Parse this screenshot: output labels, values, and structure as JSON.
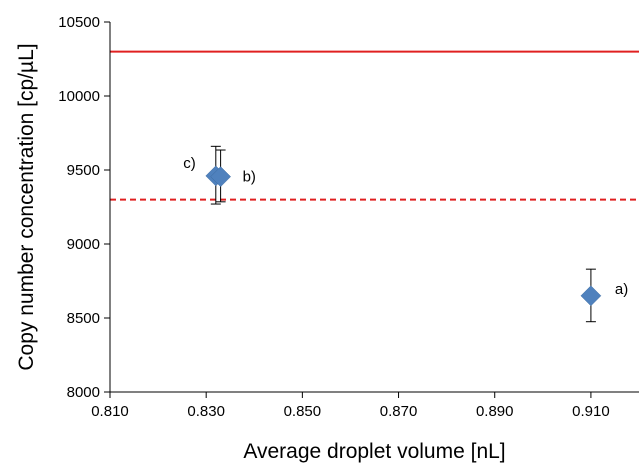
{
  "chart_data": {
    "type": "scatter",
    "title": "",
    "xlabel": "Average droplet volume [nL]",
    "ylabel": "Copy number concentration [cp/µL]",
    "xlim": [
      0.81,
      0.92
    ],
    "ylim": [
      8000,
      10500
    ],
    "x_ticks": [
      0.81,
      0.83,
      0.85,
      0.87,
      0.89,
      0.91
    ],
    "x_tick_labels": [
      "0.810",
      "0.830",
      "0.850",
      "0.870",
      "0.890",
      "0.910"
    ],
    "y_ticks": [
      8000,
      8500,
      9000,
      9500,
      10000,
      10500
    ],
    "y_tick_labels": [
      "8000",
      "8500",
      "9000",
      "9500",
      "10000",
      "10500"
    ],
    "grid": false,
    "marker_color": "#4f81bd",
    "points": [
      {
        "label": "c)",
        "x": 0.832,
        "y": 9460,
        "err_low": 190,
        "err_high": 200
      },
      {
        "label": "b)",
        "x": 0.833,
        "y": 9455,
        "err_low": 170,
        "err_high": 180
      },
      {
        "label": "a)",
        "x": 0.91,
        "y": 8650,
        "err_low": 175,
        "err_high": 180
      }
    ],
    "reference_lines": [
      {
        "y": 10300,
        "style": "solid",
        "color": "#e02020"
      },
      {
        "y": 9300,
        "style": "dashed",
        "color": "#e02020"
      }
    ]
  }
}
